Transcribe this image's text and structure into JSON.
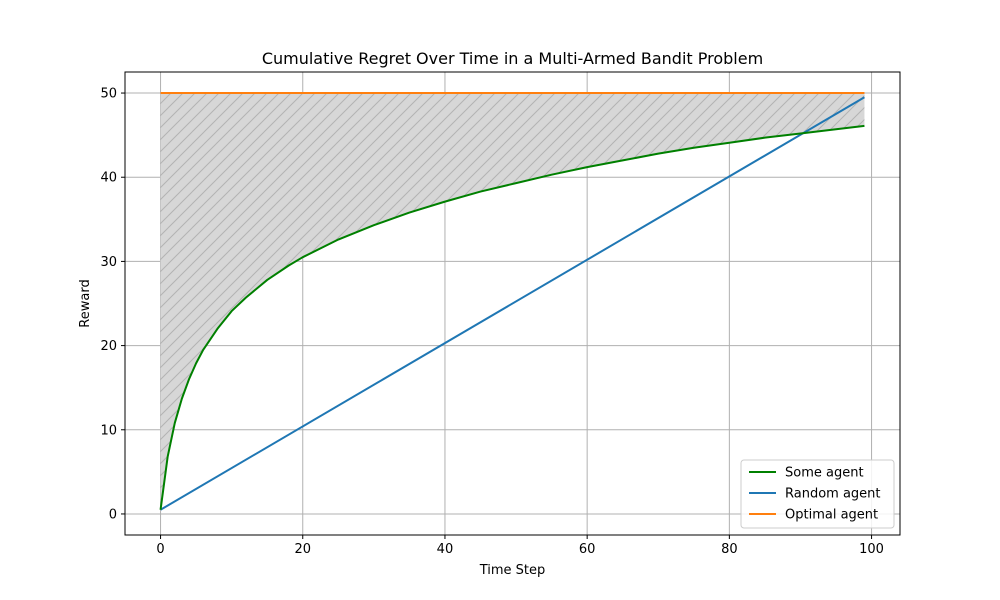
{
  "chart_data": {
    "type": "line",
    "title": "Cumulative Regret Over Time in a Multi-Armed Bandit Problem",
    "xlabel": "Time Step",
    "ylabel": "Reward",
    "xlim": [
      -5,
      104
    ],
    "ylim": [
      -2.5,
      52.5
    ],
    "xticks": [
      0,
      20,
      40,
      60,
      80,
      100
    ],
    "yticks": [
      0,
      10,
      20,
      30,
      40,
      50
    ],
    "grid": true,
    "legend_position": "lower-right",
    "fill_between": {
      "upper_series": "Optimal agent",
      "lower_series": "Some agent",
      "color": "#d7d7d7",
      "hatch": "diagonal"
    },
    "series": [
      {
        "name": "Some agent",
        "color": "#008000",
        "x": [
          0,
          1,
          2,
          3,
          4,
          5,
          6,
          8,
          10,
          12,
          15,
          18,
          20,
          25,
          30,
          35,
          40,
          45,
          50,
          55,
          60,
          65,
          70,
          75,
          80,
          85,
          90,
          95,
          99
        ],
        "values": [
          0.5,
          6.8,
          10.8,
          13.7,
          16.0,
          17.9,
          19.5,
          22.0,
          24.1,
          25.7,
          27.8,
          29.5,
          30.5,
          32.6,
          34.3,
          35.8,
          37.1,
          38.3,
          39.3,
          40.3,
          41.2,
          42.0,
          42.8,
          43.5,
          44.1,
          44.7,
          45.2,
          45.7,
          46.1
        ]
      },
      {
        "name": "Random agent",
        "color": "#1f77b4",
        "x": [
          0,
          99
        ],
        "values": [
          0.5,
          49.5
        ]
      },
      {
        "name": "Optimal agent",
        "color": "#ff7f0e",
        "x": [
          0,
          99
        ],
        "values": [
          50,
          50
        ]
      }
    ]
  }
}
